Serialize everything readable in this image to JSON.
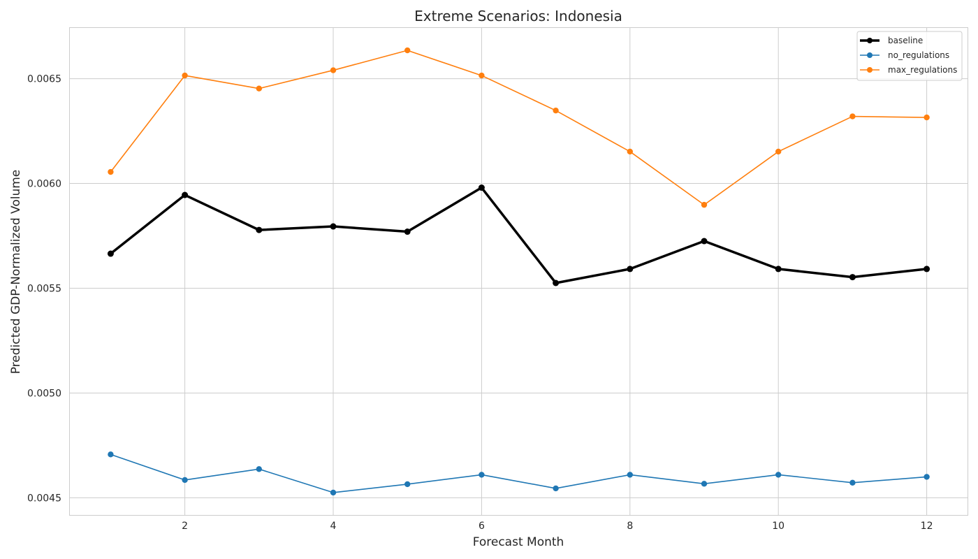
{
  "chart_data": {
    "type": "line",
    "title": "Extreme Scenarios: Indonesia",
    "xlabel": "Forecast Month",
    "ylabel": "Predicted GDP-Normalized Volume",
    "xlim": [
      0.45,
      12.55
    ],
    "ylim": [
      0.004418,
      0.006742
    ],
    "xticks": [
      2,
      4,
      6,
      8,
      10,
      12
    ],
    "xtick_labels": [
      "2",
      "4",
      "6",
      "8",
      "10",
      "12"
    ],
    "yticks": [
      0.0045,
      0.005,
      0.0055,
      0.006,
      0.0065
    ],
    "ytick_labels": [
      "0.0045",
      "0.0050",
      "0.0055",
      "0.0060",
      "0.0065"
    ],
    "grid": true,
    "legend_position": "top-right",
    "x": [
      1,
      2,
      3,
      4,
      5,
      6,
      7,
      8,
      9,
      10,
      11,
      12
    ],
    "series": [
      {
        "name": "baseline",
        "color": "#000000",
        "values": [
          0.005665,
          0.005945,
          0.005778,
          0.005795,
          0.00577,
          0.00598,
          0.005525,
          0.005592,
          0.005725,
          0.005592,
          0.005553,
          0.005592
        ]
      },
      {
        "name": "no_regulations",
        "color": "#1f77b4",
        "values": [
          0.004707,
          0.004585,
          0.004637,
          0.004525,
          0.004565,
          0.00461,
          0.004545,
          0.00461,
          0.004567,
          0.00461,
          0.004572,
          0.0046
        ]
      },
      {
        "name": "max_regulations",
        "color": "#ff7f0e",
        "values": [
          0.006055,
          0.006515,
          0.006453,
          0.00654,
          0.006635,
          0.006515,
          0.006348,
          0.006152,
          0.005898,
          0.006152,
          0.00632,
          0.006315
        ]
      }
    ]
  }
}
